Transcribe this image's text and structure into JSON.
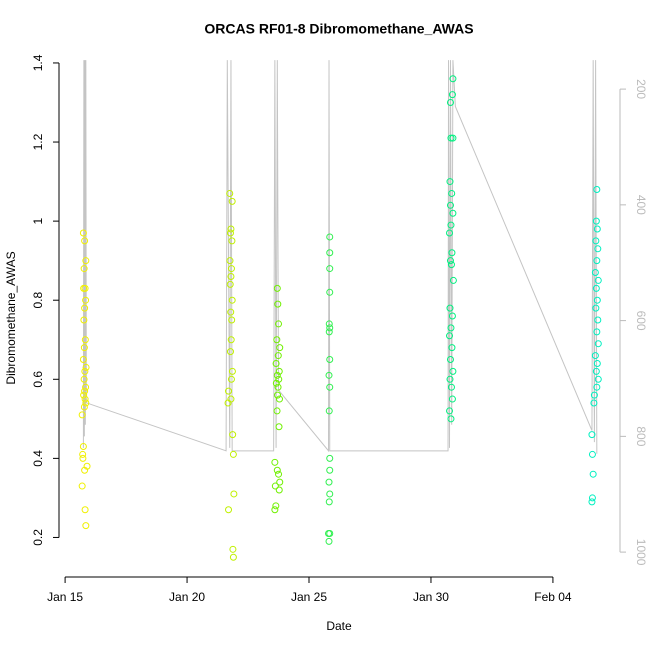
{
  "chart_data": {
    "type": "scatter",
    "title": "ORCAS RF01-8 Dibromomethane_AWAS",
    "x_label": "Date",
    "y_label": "Dibromomethane_AWAS",
    "xlim": [
      14.75,
      37.75
    ],
    "xticks": [
      {
        "value": 15,
        "label": "Jan 15"
      },
      {
        "value": 20,
        "label": "Jan 20"
      },
      {
        "value": 25,
        "label": "Jan 25"
      },
      {
        "value": 30,
        "label": "Jan 30"
      },
      {
        "value": 35,
        "label": "Feb 04"
      }
    ],
    "ylim": [
      0.1,
      1.41
    ],
    "yticks": [
      0.2,
      0.4,
      0.6,
      0.8,
      1.0,
      1.2,
      1.4
    ],
    "y2lim": [
      1043,
      148
    ],
    "y2ticks": [
      200,
      400,
      600,
      800,
      1000
    ],
    "y2_color": "#bbbbbb",
    "series": [
      {
        "color": "#f0f000",
        "x": [
          15.75,
          15.8,
          15.85,
          15.78,
          15.82,
          15.76,
          15.84,
          15.8,
          15.77,
          15.83,
          15.79,
          15.75,
          15.86,
          15.81,
          15.78,
          15.84,
          15.8,
          15.76,
          15.82,
          15.85,
          15.79,
          15.7,
          15.75,
          15.72,
          15.9,
          15.73,
          15.8,
          15.7,
          15.82,
          15.85
        ],
        "values": [
          0.97,
          0.95,
          0.9,
          0.88,
          0.83,
          0.83,
          0.8,
          0.78,
          0.75,
          0.7,
          0.68,
          0.65,
          0.63,
          0.62,
          0.6,
          0.58,
          0.57,
          0.56,
          0.55,
          0.54,
          0.53,
          0.51,
          0.43,
          0.41,
          0.38,
          0.4,
          0.37,
          0.33,
          0.27,
          0.23
        ]
      },
      {
        "color": "#c0f000",
        "x": [
          21.75,
          21.85,
          21.8,
          21.78,
          21.84,
          21.76,
          21.82,
          21.8,
          21.77,
          21.85,
          21.79,
          21.83,
          21.81,
          21.78,
          21.86,
          21.82,
          21.7,
          21.8,
          21.68,
          21.87,
          21.9,
          21.92,
          21.7,
          21.88,
          21.9
        ],
        "values": [
          1.07,
          1.05,
          0.98,
          0.97,
          0.95,
          0.9,
          0.88,
          0.86,
          0.84,
          0.8,
          0.77,
          0.75,
          0.7,
          0.67,
          0.62,
          0.6,
          0.57,
          0.55,
          0.54,
          0.46,
          0.41,
          0.31,
          0.27,
          0.17,
          0.15
        ]
      },
      {
        "color": "#70f000",
        "x": [
          23.7,
          23.72,
          23.75,
          23.68,
          23.8,
          23.74,
          23.65,
          23.78,
          23.7,
          23.76,
          23.66,
          23.73,
          23.71,
          23.79,
          23.69,
          23.77,
          23.6,
          23.7,
          23.75,
          23.8,
          23.62,
          23.78,
          23.64,
          23.6
        ],
        "values": [
          0.83,
          0.79,
          0.74,
          0.7,
          0.68,
          0.66,
          0.64,
          0.62,
          0.61,
          0.6,
          0.59,
          0.58,
          0.56,
          0.55,
          0.52,
          0.48,
          0.39,
          0.37,
          0.36,
          0.34,
          0.33,
          0.32,
          0.28,
          0.27
        ]
      },
      {
        "color": "#30f050",
        "x": [
          25.85,
          25.85,
          25.85,
          25.85,
          25.83,
          25.85,
          25.83,
          25.85,
          25.82,
          25.85,
          25.83,
          25.85,
          25.85,
          25.82,
          25.85,
          25.83,
          25.8,
          25.85,
          25.82
        ],
        "values": [
          0.96,
          0.92,
          0.88,
          0.82,
          0.74,
          0.73,
          0.72,
          0.65,
          0.61,
          0.58,
          0.52,
          0.4,
          0.37,
          0.34,
          0.31,
          0.29,
          0.21,
          0.21,
          0.19
        ]
      },
      {
        "color": "#00f080",
        "x": [
          30.9,
          30.88,
          30.8,
          30.82,
          30.9,
          30.78,
          30.85,
          30.8,
          30.9,
          30.82,
          30.76,
          30.86,
          30.8,
          30.84,
          30.92,
          30.78,
          30.88,
          30.82,
          30.76,
          30.86,
          30.8,
          30.9,
          30.78,
          30.84,
          30.88,
          30.76,
          30.82
        ],
        "values": [
          1.36,
          1.32,
          1.3,
          1.21,
          1.21,
          1.1,
          1.07,
          1.04,
          1.02,
          0.99,
          0.97,
          0.92,
          0.9,
          0.89,
          0.85,
          0.78,
          0.76,
          0.73,
          0.71,
          0.68,
          0.65,
          0.62,
          0.6,
          0.58,
          0.55,
          0.52,
          0.5
        ]
      },
      {
        "color": "#00f0c0",
        "x": [
          36.8,
          36.78,
          36.82,
          36.76,
          36.84,
          36.8,
          36.74,
          36.86,
          36.78,
          36.82,
          36.76,
          36.84,
          36.8,
          36.86,
          36.74,
          36.82,
          36.78,
          36.86,
          36.8,
          36.7,
          36.68,
          36.6,
          36.62,
          36.65,
          36.62,
          36.6
        ],
        "values": [
          1.08,
          1.0,
          0.98,
          0.95,
          0.93,
          0.9,
          0.87,
          0.85,
          0.83,
          0.8,
          0.78,
          0.75,
          0.72,
          0.69,
          0.66,
          0.64,
          0.62,
          0.6,
          0.58,
          0.56,
          0.54,
          0.46,
          0.41,
          0.36,
          0.3,
          0.29
        ]
      },
      {
        "type": "line",
        "axis": "y2",
        "color": "#c4c4c4",
        "x": [
          15.75,
          15.77,
          15.79,
          15.81,
          15.83,
          15.85,
          15.87,
          21.6,
          21.65,
          21.75,
          21.8,
          21.85,
          23.55,
          23.6,
          23.65,
          23.7,
          23.75,
          25.8,
          25.82,
          25.85,
          30.7,
          30.72,
          30.76,
          30.8,
          30.85,
          30.9,
          31.0,
          36.6,
          36.65,
          36.7,
          36.75,
          36.8
        ],
        "values": [
          820,
          150,
          800,
          150,
          780,
          150,
          742,
          825,
          150,
          820,
          150,
          825,
          825,
          150,
          820,
          150,
          720,
          825,
          150,
          825,
          825,
          150,
          820,
          150,
          780,
          150,
          230,
          790,
          150,
          810,
          150,
          830
        ]
      }
    ]
  }
}
